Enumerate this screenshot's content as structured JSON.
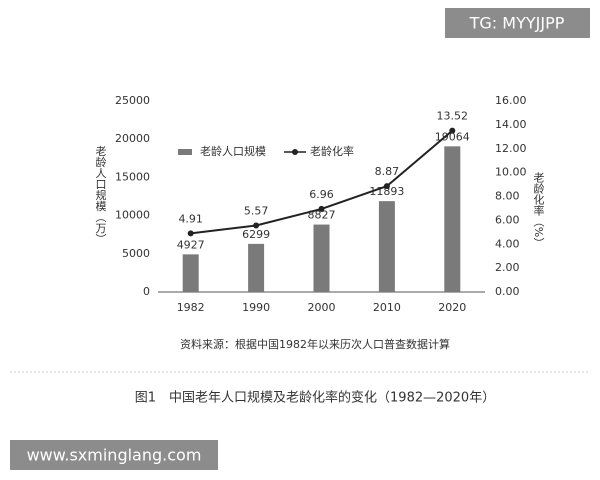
{
  "chart_data": {
    "type": "bar",
    "y_label": "老龄人口规模（万）",
    "y2_label": "老龄化率（%）",
    "categories": [
      "1982",
      "1990",
      "2000",
      "2010",
      "2020"
    ],
    "series": [
      {
        "name": "老龄人口规模",
        "type": "bar",
        "color": "#7a7a7a",
        "values": [
          4927,
          6299,
          8827,
          11893,
          19064
        ]
      },
      {
        "name": "老龄化率",
        "type": "line",
        "axis": "y2",
        "color": "#222222",
        "values": [
          4.91,
          5.57,
          6.96,
          8.87,
          13.52
        ]
      }
    ],
    "ylim": [
      0,
      25000
    ],
    "yticks": [
      0,
      5000,
      10000,
      15000,
      20000,
      25000
    ],
    "y2lim": [
      0,
      16
    ],
    "y2ticks": [
      {
        "value": 0,
        "label": "0.00"
      },
      {
        "value": 2,
        "label": "2.00"
      },
      {
        "value": 4,
        "label": "4.00"
      },
      {
        "value": 6,
        "label": "6.00"
      },
      {
        "value": 8,
        "label": "8.00"
      },
      {
        "value": 10,
        "label": "10.00"
      },
      {
        "value": 12,
        "label": "12.00"
      },
      {
        "value": 14,
        "label": "14.00"
      },
      {
        "value": 16,
        "label": "16.00"
      }
    ],
    "grid": false,
    "legend": "top-left",
    "source": "资料来源：根据中国1982年以来历次人口普查数据计算",
    "caption": "图1　中国老年人口规模及老龄化率的变化（1982—2020年）"
  },
  "watermark_top": "TG: MYYJJPP",
  "watermark_bottom": "www.sxminglang.com"
}
